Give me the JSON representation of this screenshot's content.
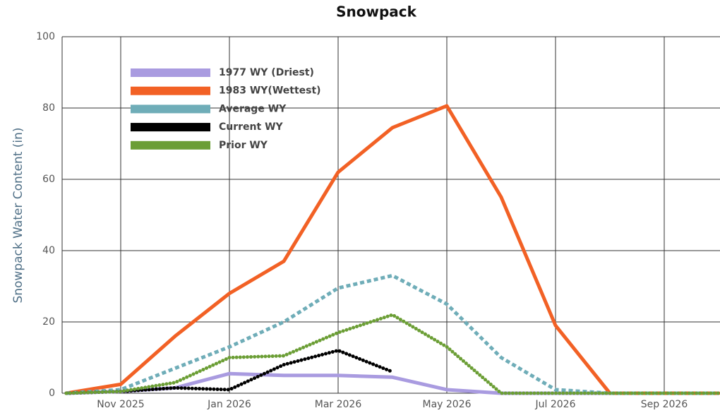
{
  "chart_data": {
    "type": "line",
    "title": "Snowpack",
    "y_label": "Snowpack Water Content (in)",
    "x": [
      "2025-10",
      "2025-11",
      "2025-12",
      "2026-01",
      "2026-02",
      "2026-03",
      "2026-04",
      "2026-05",
      "2026-06",
      "2026-07",
      "2026-08",
      "2026-09",
      "2026-10"
    ],
    "xlim": [
      "2025-10",
      "2026-10"
    ],
    "xticks": [
      {
        "value": "2025-11",
        "label": "Nov 2025"
      },
      {
        "value": "2026-01",
        "label": "Jan 2026"
      },
      {
        "value": "2026-03",
        "label": "Mar 2026"
      },
      {
        "value": "2026-05",
        "label": "May 2026"
      },
      {
        "value": "2026-07",
        "label": "Jul 2026"
      },
      {
        "value": "2026-09",
        "label": "Sep 2026"
      }
    ],
    "ylim": [
      0,
      100
    ],
    "yticks": [
      0,
      20,
      40,
      60,
      80,
      100
    ],
    "grid": true,
    "legend": "upper left",
    "series": [
      {
        "name": "1977 WY (Driest)",
        "color": "#a99be0",
        "line_style": "solid",
        "values": [
          0,
          0.5,
          1.5,
          5.5,
          5,
          5,
          4.5,
          1,
          0,
          0,
          0,
          0,
          0
        ]
      },
      {
        "name": "1983 WY(Wettest)",
        "color": "#f26125",
        "line_style": "solid",
        "values": [
          0,
          2.5,
          16,
          28,
          37,
          62,
          74.5,
          80.6,
          55,
          19,
          0,
          0,
          0
        ]
      },
      {
        "name": "Average WY",
        "color": "#6fadb8",
        "line_style": "dashed",
        "values": [
          0,
          1,
          7,
          13,
          20,
          29.5,
          33,
          25,
          10,
          1,
          0,
          0,
          0
        ]
      },
      {
        "name": "Current WY",
        "color": "#000000",
        "line_style": "dotted",
        "values": [
          0,
          0.5,
          1.5,
          1,
          8,
          12,
          6,
          null,
          null,
          null,
          null,
          null,
          null
        ]
      },
      {
        "name": "Prior WY",
        "color": "#6b9e35",
        "line_style": "dotted",
        "values": [
          0,
          0.5,
          3,
          10,
          10.5,
          17,
          22,
          13,
          0,
          0,
          0,
          0,
          0
        ]
      }
    ]
  }
}
